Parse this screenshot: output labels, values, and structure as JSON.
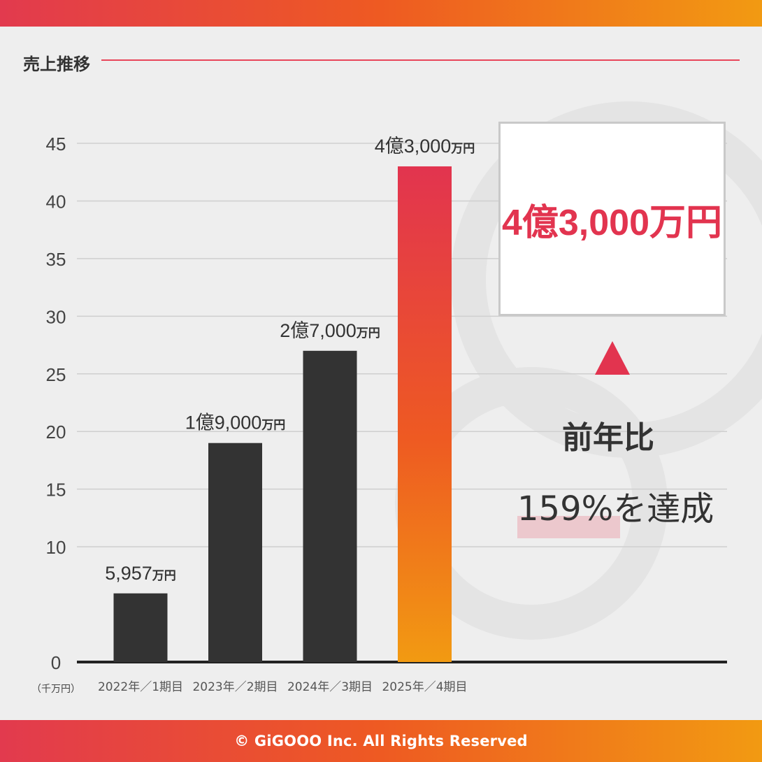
{
  "section_title": "売上推移",
  "chart_data": {
    "type": "bar",
    "categories": [
      "2022年／1期目",
      "2023年／2期目",
      "2024年／3期目",
      "2025年／4期目"
    ],
    "values": [
      5.957,
      19,
      27,
      43
    ],
    "value_labels": [
      {
        "num": "5,957",
        "unit": "万円"
      },
      {
        "num": "1億9,000",
        "unit": "万円"
      },
      {
        "num": "2億7,000",
        "unit": "万円"
      },
      {
        "num": "4億3,000",
        "unit": "万円"
      }
    ],
    "yticks": [
      0,
      10,
      15,
      20,
      25,
      30,
      35,
      40,
      45
    ],
    "ylim": [
      0,
      45
    ],
    "yunit": "（千万円）",
    "bar_color": "#333333",
    "highlight_index": 3,
    "highlight_gradient": [
      "#e2344f",
      "#ee5a22",
      "#f29a12"
    ],
    "grid": true
  },
  "callout": {
    "value": "4億3,000万円",
    "line1": "前年比",
    "line2": "159%を達成"
  },
  "footer": "© GiGOOO Inc. All Rights Reserved",
  "colors": {
    "accent": "#e2344f",
    "orange": "#ee5a22",
    "gold": "#f29a12"
  }
}
